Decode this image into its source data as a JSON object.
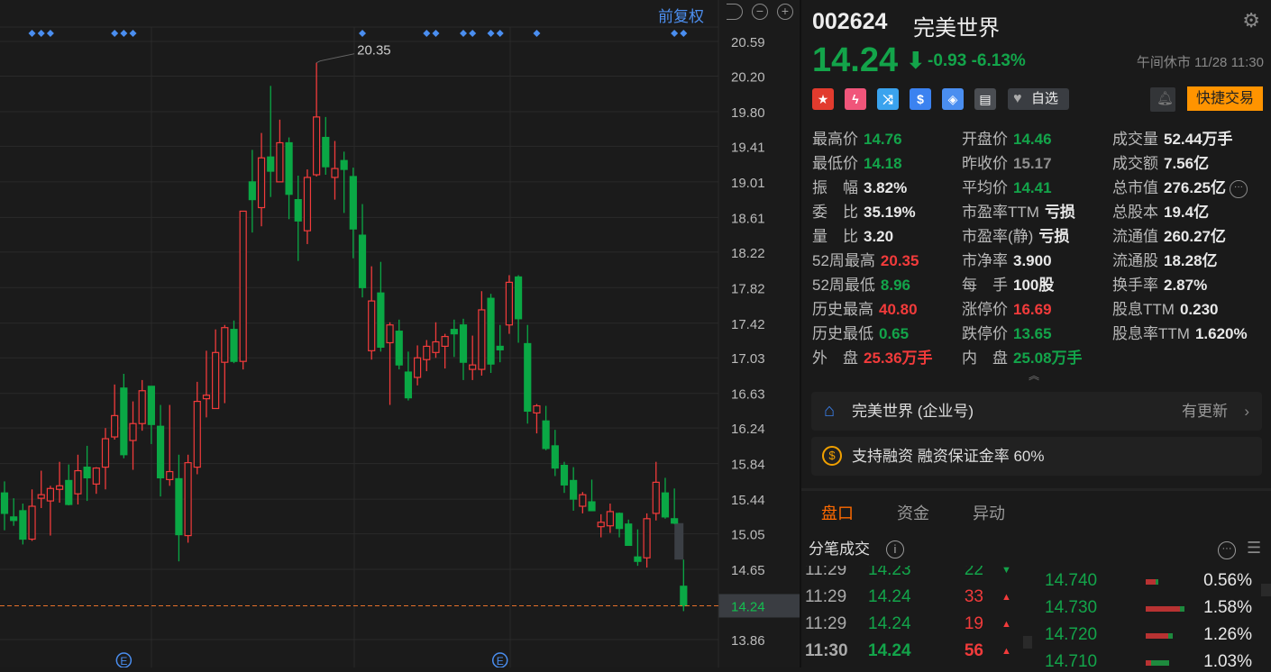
{
  "chart_toolbar": {
    "adjust_label": "前复权",
    "undo_icon": "undo-icon",
    "zoom_out_icon": "minus-circle-icon",
    "zoom_in_icon": "plus-circle-icon"
  },
  "chart_data": {
    "type": "candlestick",
    "ylim": [
      13.86,
      20.59
    ],
    "y_ticks": [
      "20.59",
      "20.20",
      "19.80",
      "19.41",
      "19.01",
      "18.61",
      "18.22",
      "17.82",
      "17.42",
      "17.03",
      "16.63",
      "16.24",
      "15.84",
      "15.44",
      "15.05",
      "14.65",
      "14.24",
      "13.86"
    ],
    "current_price_label": "14.24",
    "high_annotation": "20.35",
    "up_color": "#f23b3b",
    "down_color": "#0aa845",
    "candles": [
      [
        15.51,
        15.64,
        15.09,
        15.28
      ],
      [
        15.24,
        15.45,
        15.14,
        15.2
      ],
      [
        15.31,
        15.39,
        14.93,
        14.99
      ],
      [
        14.99,
        15.55,
        14.97,
        15.36
      ],
      [
        15.45,
        15.76,
        15.34,
        15.49
      ],
      [
        15.42,
        15.59,
        15.03,
        15.56
      ],
      [
        15.55,
        15.86,
        15.4,
        15.59
      ],
      [
        15.65,
        15.83,
        15.37,
        15.38
      ],
      [
        15.5,
        15.94,
        15.38,
        15.76
      ],
      [
        15.8,
        16.04,
        15.42,
        15.68
      ],
      [
        15.61,
        15.8,
        15.5,
        15.79
      ],
      [
        15.8,
        16.24,
        15.55,
        16.12
      ],
      [
        16.14,
        16.73,
        16.11,
        16.38
      ],
      [
        16.69,
        16.85,
        15.9,
        15.94
      ],
      [
        16.1,
        16.54,
        15.77,
        16.29
      ],
      [
        16.29,
        16.78,
        16.21,
        16.66
      ],
      [
        16.71,
        16.71,
        16.06,
        16.28
      ],
      [
        16.26,
        16.5,
        15.47,
        15.68
      ],
      [
        15.66,
        16.5,
        15.59,
        15.75
      ],
      [
        15.67,
        15.94,
        14.74,
        15.04
      ],
      [
        15.03,
        15.94,
        14.95,
        15.85
      ],
      [
        15.8,
        16.76,
        15.72,
        16.54
      ],
      [
        16.57,
        17.11,
        16.36,
        16.61
      ],
      [
        16.46,
        17.35,
        16.46,
        17.09
      ],
      [
        16.98,
        17.4,
        16.52,
        17.37
      ],
      [
        17.35,
        17.45,
        16.97,
        16.99
      ],
      [
        16.99,
        18.68,
        16.9,
        18.68
      ],
      [
        19.01,
        19.37,
        18.44,
        18.81
      ],
      [
        18.72,
        19.56,
        18.51,
        19.28
      ],
      [
        19.29,
        20.09,
        18.84,
        19.13
      ],
      [
        19.01,
        19.71,
        19.01,
        19.45
      ],
      [
        19.45,
        19.51,
        18.59,
        18.87
      ],
      [
        18.81,
        19.08,
        18.12,
        18.57
      ],
      [
        18.46,
        19.15,
        18.31,
        19.06
      ],
      [
        19.09,
        20.35,
        19.07,
        19.74
      ],
      [
        19.51,
        19.74,
        19.09,
        19.18
      ],
      [
        19.06,
        19.47,
        18.81,
        19.16
      ],
      [
        19.25,
        19.35,
        18.66,
        19.15
      ],
      [
        19.07,
        19.17,
        18.15,
        18.48
      ],
      [
        18.41,
        18.76,
        17.71,
        17.82
      ],
      [
        17.11,
        18.06,
        17.01,
        17.67
      ],
      [
        17.76,
        18.11,
        17.1,
        17.15
      ],
      [
        17.2,
        17.43,
        16.5,
        17.4
      ],
      [
        17.33,
        17.46,
        16.9,
        16.95
      ],
      [
        16.87,
        17.1,
        16.55,
        16.58
      ],
      [
        16.81,
        17.17,
        16.72,
        17.03
      ],
      [
        17.01,
        17.23,
        16.88,
        17.16
      ],
      [
        17.09,
        17.43,
        17.03,
        17.21
      ],
      [
        17.16,
        17.3,
        16.91,
        17.27
      ],
      [
        17.35,
        17.46,
        17.04,
        17.3
      ],
      [
        17.4,
        17.47,
        16.78,
        16.98
      ],
      [
        16.9,
        17.28,
        16.78,
        16.95
      ],
      [
        16.9,
        17.78,
        16.83,
        17.57
      ],
      [
        17.7,
        17.75,
        16.86,
        16.96
      ],
      [
        17.16,
        17.4,
        16.98,
        17.12
      ],
      [
        17.4,
        17.96,
        17.3,
        17.88
      ],
      [
        17.94,
        17.96,
        17.2,
        17.47
      ],
      [
        17.19,
        17.4,
        16.29,
        16.43
      ],
      [
        16.41,
        16.51,
        16.18,
        16.49
      ],
      [
        16.32,
        16.49,
        15.99,
        16.01
      ],
      [
        16.04,
        16.22,
        15.7,
        15.79
      ],
      [
        15.82,
        15.86,
        15.51,
        15.6
      ],
      [
        15.65,
        15.8,
        15.31,
        15.44
      ],
      [
        15.36,
        15.52,
        15.28,
        15.49
      ],
      [
        15.41,
        15.66,
        15.31,
        15.31
      ],
      [
        15.13,
        15.27,
        15.01,
        15.18
      ],
      [
        15.14,
        15.39,
        15.06,
        15.3
      ],
      [
        15.28,
        15.29,
        15.01,
        15.11
      ],
      [
        15.16,
        15.21,
        14.92,
        14.92
      ],
      [
        14.79,
        15.1,
        14.69,
        14.74
      ],
      [
        14.78,
        15.28,
        14.67,
        15.22
      ],
      [
        15.28,
        15.86,
        15.2,
        15.63
      ],
      [
        15.51,
        15.68,
        15.22,
        15.24
      ],
      [
        15.22,
        15.56,
        15.16,
        15.17
      ],
      [
        14.46,
        14.76,
        14.18,
        14.24
      ]
    ],
    "gap": [
      14.76,
      15.17
    ],
    "event_markers": [
      3,
      4,
      5,
      12,
      13,
      14,
      39,
      46,
      47,
      50,
      51,
      53,
      54,
      58,
      73,
      74
    ],
    "earnings_markers": [
      13,
      54
    ],
    "earnings_label": "E"
  },
  "header": {
    "code": "002624",
    "name": "完美世界",
    "price": "14.24",
    "change": "-0.93",
    "change_pct": "-6.13%",
    "status": "午间休市 11/28 11:30",
    "watch_label": "自选",
    "quick_trade": "快捷交易",
    "badges": [
      {
        "icon": "china-flag-icon",
        "color": "#e23b2e",
        "glyph": "★"
      },
      {
        "icon": "lightning-1-icon",
        "color": "#f0557a",
        "glyph": "ϟ"
      },
      {
        "icon": "shuffle-icon",
        "color": "#3aa3ee",
        "glyph": "⤨"
      },
      {
        "icon": "dollar-icon",
        "color": "#3b82f0",
        "glyph": "$"
      },
      {
        "icon": "tag-icon",
        "color": "#4a8ef0",
        "glyph": "◈"
      },
      {
        "icon": "note-icon",
        "color": "#4a4d52",
        "glyph": "▤"
      }
    ]
  },
  "stats": [
    [
      {
        "l": "最高价",
        "v": "14.76",
        "c": "green"
      },
      {
        "l": "开盘价",
        "v": "14.46",
        "c": "green"
      },
      {
        "l": "成交量",
        "v": "52.44万手",
        "c": "white"
      }
    ],
    [
      {
        "l": "最低价",
        "v": "14.18",
        "c": "green"
      },
      {
        "l": "昨收价",
        "v": "15.17",
        "c": "gray"
      },
      {
        "l": "成交额",
        "v": "7.56亿",
        "c": "white"
      }
    ],
    [
      {
        "l": "振　幅",
        "v": "3.82%",
        "c": "white"
      },
      {
        "l": "平均价",
        "v": "14.41",
        "c": "green"
      },
      {
        "l": "总市值",
        "v": "276.25亿",
        "c": "white"
      }
    ],
    [
      {
        "l": "委　比",
        "v": "35.19%",
        "c": "white"
      },
      {
        "l": "市盈率TTM",
        "v": "亏损",
        "c": "white"
      },
      {
        "l": "总股本",
        "v": "19.4亿",
        "c": "white"
      }
    ],
    [
      {
        "l": "量　比",
        "v": "3.20",
        "c": "white"
      },
      {
        "l": "市盈率(静)",
        "v": "亏损",
        "c": "white"
      },
      {
        "l": "流通值",
        "v": "260.27亿",
        "c": "white"
      }
    ],
    [
      {
        "l": "52周最高",
        "v": "20.35",
        "c": "red"
      },
      {
        "l": "市净率",
        "v": "3.900",
        "c": "white"
      },
      {
        "l": "流通股",
        "v": "18.28亿",
        "c": "white"
      }
    ],
    [
      {
        "l": "52周最低",
        "v": "8.96",
        "c": "green"
      },
      {
        "l": "每　手",
        "v": "100股",
        "c": "white"
      },
      {
        "l": "换手率",
        "v": "2.87%",
        "c": "white"
      }
    ],
    [
      {
        "l": "历史最高",
        "v": "40.80",
        "c": "red"
      },
      {
        "l": "涨停价",
        "v": "16.69",
        "c": "red"
      },
      {
        "l": "股息TTM",
        "v": "0.230",
        "c": "white"
      }
    ],
    [
      {
        "l": "历史最低",
        "v": "0.65",
        "c": "green"
      },
      {
        "l": "跌停价",
        "v": "13.65",
        "c": "green"
      },
      {
        "l": "股息率TTM",
        "v": "1.620%",
        "c": "white"
      }
    ],
    [
      {
        "l": "外　盘",
        "v": "25.36万手",
        "c": "red"
      },
      {
        "l": "内　盘",
        "v": "25.08万手",
        "c": "green"
      }
    ]
  ],
  "cards": {
    "company": "完美世界 (企业号)",
    "company_update": "有更新",
    "margin": "支持融资 融资保证金率 60%"
  },
  "tabs": [
    {
      "label": "盘口",
      "active": true
    },
    {
      "label": "资金"
    },
    {
      "label": "异动"
    }
  ],
  "trades": {
    "title": "分笔成交",
    "rows": [
      {
        "time": "11:29",
        "price": "14.23",
        "vol": "22",
        "dir": "down"
      },
      {
        "time": "11:29",
        "price": "14.24",
        "vol": "33",
        "dir": "up"
      },
      {
        "time": "11:29",
        "price": "14.24",
        "vol": "19",
        "dir": "up"
      },
      {
        "time": "11:30",
        "price": "14.24",
        "vol": "56",
        "dir": "up"
      }
    ]
  },
  "orderbook": [
    {
      "price": "14.740",
      "pct": "0.56%",
      "red": 0.8,
      "green": 0.2
    },
    {
      "price": "14.730",
      "pct": "1.58%",
      "red": 0.88,
      "green": 0.12
    },
    {
      "price": "14.720",
      "pct": "1.26%",
      "red": 0.75,
      "green": 0.17
    },
    {
      "price": "14.710",
      "pct": "1.03%",
      "red": 0.22,
      "green": 0.73
    }
  ]
}
